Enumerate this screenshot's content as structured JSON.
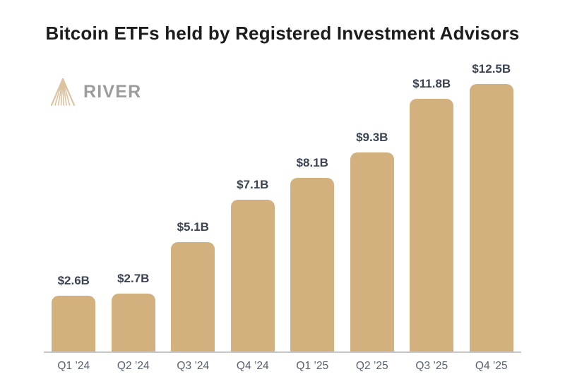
{
  "header": {
    "title": "Bitcoin ETFs held by Registered Investment Advisors"
  },
  "logo": {
    "brand": "RIVER",
    "icon": "river-delta-icon",
    "icon_color": "#dcc3a0",
    "text_color": "#9c9c9c"
  },
  "chart_data": {
    "type": "bar",
    "title": "Bitcoin ETFs held by Registered Investment Advisors",
    "categories": [
      "Q1 ’24",
      "Q2 ’24",
      "Q3 ’24",
      "Q4 ’24",
      "Q1 ’25",
      "Q2 ’25",
      "Q3 ’25",
      "Q4 ’25"
    ],
    "values": [
      2.6,
      2.7,
      5.1,
      7.1,
      8.1,
      9.3,
      11.8,
      12.5
    ],
    "value_labels": [
      "$2.6B",
      "$2.7B",
      "$5.1B",
      "$7.1B",
      "$8.1B",
      "$9.3B",
      "$11.8B",
      "$12.5B"
    ],
    "xlabel": "",
    "ylabel": "",
    "ylim": [
      0,
      12.5
    ],
    "grid": false,
    "legend": false,
    "bar_color": "#d2b17e",
    "value_label_color": "#3c4454",
    "category_label_color": "#59606e",
    "axis_line_color": "#c6c6c6"
  }
}
